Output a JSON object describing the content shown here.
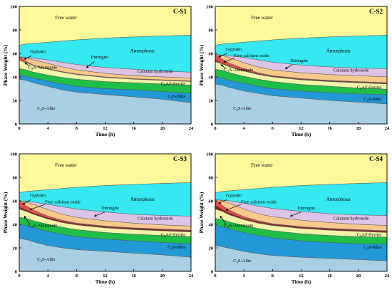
{
  "chart_data": [
    {
      "type": "area",
      "title": "C-S1",
      "xlabel": "Time (h)",
      "ylabel": "Phase Weight (%)",
      "xlim": [
        0,
        24
      ],
      "ylim": [
        0,
        100
      ],
      "xticks": [
        0,
        4,
        8,
        12,
        16,
        20,
        24
      ],
      "yticks": [
        0,
        20,
        40,
        60,
        80,
        100
      ],
      "x": [
        0,
        0.5,
        1,
        2,
        4,
        6,
        8,
        12,
        16,
        20,
        24
      ],
      "stacked_top_boundaries": [
        {
          "name": "C3S-Alite",
          "values": [
            38,
            37.5,
            37,
            35,
            32,
            29,
            27,
            25,
            23,
            21,
            18
          ]
        },
        {
          "name": "C2S-Blite",
          "values": [
            41.5,
            41,
            40.5,
            39,
            36.5,
            34,
            32,
            30,
            29,
            27.5,
            26
          ]
        },
        {
          "name": "C4AF-Ferrite",
          "values": [
            47,
            46.5,
            46,
            44,
            41.5,
            39.5,
            38,
            36,
            35,
            34,
            33
          ]
        },
        {
          "name": "C3A-Aluminate",
          "values": [
            54,
            53,
            52,
            49.5,
            46.5,
            44,
            42,
            39.5,
            38,
            37,
            36
          ]
        },
        {
          "name": "Gypsum",
          "values": [
            57,
            55.5,
            53,
            50,
            47,
            44.5,
            42.5,
            40,
            38.5,
            37.5,
            36.5
          ]
        },
        {
          "name": "Ettringite",
          "values": [
            57,
            56.5,
            56,
            54.5,
            51.5,
            48.5,
            46,
            43,
            41,
            40,
            39
          ]
        },
        {
          "name": "Calcium hydroxide",
          "values": [
            57,
            56.8,
            56.5,
            56,
            54.5,
            52.5,
            50.5,
            48,
            46.5,
            45,
            44
          ]
        },
        {
          "name": "Amorphous",
          "values": [
            67,
            67.5,
            68,
            68.5,
            69.5,
            70.5,
            71.5,
            73,
            74,
            74.8,
            75.5
          ]
        },
        {
          "name": "Free water",
          "values": [
            100,
            100,
            100,
            100,
            100,
            100,
            100,
            100,
            100,
            100,
            100
          ]
        }
      ],
      "labels": [
        {
          "key": "free_water",
          "text": "Free water"
        },
        {
          "key": "amorphous",
          "text": "Amorphous"
        },
        {
          "key": "gypsum",
          "text": "Gypsum"
        },
        {
          "key": "ettringite",
          "text": "Ettringite"
        },
        {
          "key": "ch",
          "text": "Calcium hydroxide"
        },
        {
          "key": "c3a",
          "main": "C",
          "sub": "3",
          "rest": "A-Aluminate"
        },
        {
          "key": "c4af",
          "main": "C",
          "sub": "4",
          "rest": "AF-Ferrite"
        },
        {
          "key": "c2s",
          "main": "C",
          "sub": "2",
          "rest": "S-Blite"
        },
        {
          "key": "c3s",
          "main": "C",
          "sub": "3",
          "rest": "S-Alite"
        }
      ]
    },
    {
      "type": "area",
      "title": "C-S2",
      "xlabel": "Time (h)",
      "ylabel": "Phase Weight (%)",
      "xlim": [
        0,
        24
      ],
      "ylim": [
        0,
        100
      ],
      "xticks": [
        0,
        4,
        8,
        12,
        16,
        20,
        24
      ],
      "yticks": [
        0,
        20,
        40,
        60,
        80,
        100
      ],
      "x": [
        0,
        0.5,
        1,
        2,
        4,
        6,
        8,
        12,
        16,
        20,
        24
      ],
      "stacked_top_boundaries": [
        {
          "name": "C3S-Alite",
          "values": [
            34,
            33.5,
            33,
            31,
            28,
            26,
            24,
            22,
            20,
            18.5,
            17
          ]
        },
        {
          "name": "C2S-Blite",
          "values": [
            40,
            39.5,
            39,
            37,
            34.5,
            32,
            30,
            28,
            26.5,
            25.5,
            25
          ]
        },
        {
          "name": "C4AF-Ferrite",
          "values": [
            46.5,
            46,
            45.5,
            43.5,
            40.5,
            38,
            36,
            33.5,
            32,
            30.5,
            29.5
          ]
        },
        {
          "name": "C3A-Aluminate",
          "values": [
            53,
            52,
            51,
            48.5,
            45,
            42,
            40,
            37.5,
            36,
            35,
            34
          ]
        },
        {
          "name": "Free calcium oxide",
          "values": [
            54,
            53,
            51.5,
            49,
            45.5,
            42.5,
            40.5,
            38,
            36.5,
            35.5,
            34.5
          ]
        },
        {
          "name": "Gypsum",
          "values": [
            59,
            57,
            55,
            51.5,
            47,
            43.5,
            41,
            38.5,
            37,
            36,
            35
          ]
        },
        {
          "name": "Ettringite",
          "values": [
            59,
            58.5,
            58,
            56.5,
            52,
            48.5,
            46,
            43.5,
            42,
            41,
            40
          ]
        },
        {
          "name": "Calcium hydroxide",
          "values": [
            59,
            58.8,
            58.5,
            58,
            56.5,
            54.5,
            52.5,
            50,
            48.5,
            47.5,
            47
          ]
        },
        {
          "name": "Amorphous",
          "values": [
            67,
            67.5,
            68,
            68.5,
            69.5,
            70.5,
            71.5,
            73,
            74,
            74.8,
            75.5
          ]
        },
        {
          "name": "Free water",
          "values": [
            100,
            100,
            100,
            100,
            100,
            100,
            100,
            100,
            100,
            100,
            100
          ]
        }
      ],
      "labels": [
        {
          "key": "free_water",
          "text": "Free water"
        },
        {
          "key": "amorphous",
          "text": "Amorphous"
        },
        {
          "key": "gypsum",
          "text": "Gypsum"
        },
        {
          "key": "fco",
          "text": "Free calcium oxide"
        },
        {
          "key": "ettringite",
          "text": "Ettringite"
        },
        {
          "key": "ch",
          "text": "Calcium hydroxide"
        },
        {
          "key": "c3a",
          "main": "C",
          "sub": "3",
          "rest": "A-Aluminate"
        },
        {
          "key": "c4af",
          "main": "C",
          "sub": "4",
          "rest": "AF-Ferrite"
        },
        {
          "key": "c2s",
          "main": "C",
          "sub": "2",
          "rest": "S-Blite"
        },
        {
          "key": "c3s",
          "main": "C",
          "sub": "3",
          "rest": "S-Alite"
        }
      ]
    },
    {
      "type": "area",
      "title": "C-S3",
      "xlabel": "Time (h)",
      "ylabel": "Phase Weight (%)",
      "xlim": [
        0,
        24
      ],
      "ylim": [
        0,
        100
      ],
      "xticks": [
        0,
        4,
        8,
        12,
        16,
        20,
        24
      ],
      "yticks": [
        0,
        20,
        40,
        60,
        80,
        100
      ],
      "x": [
        0,
        0.5,
        1,
        2,
        4,
        6,
        8,
        12,
        16,
        20,
        24
      ],
      "stacked_top_boundaries": [
        {
          "name": "C3S-Alite",
          "values": [
            28,
            27.5,
            27,
            25,
            22,
            20,
            18.5,
            17,
            15.5,
            14,
            12
          ]
        },
        {
          "name": "C2S-Blite",
          "values": [
            40,
            39.5,
            39,
            37,
            34,
            31.5,
            29.5,
            27.5,
            26,
            24.5,
            23.5
          ]
        },
        {
          "name": "C4AF-Ferrite",
          "values": [
            46,
            45.5,
            45,
            43,
            40,
            37.5,
            35.5,
            33,
            31.5,
            30.5,
            29.5
          ]
        },
        {
          "name": "C3A-Aluminate",
          "values": [
            53,
            52,
            51,
            48.5,
            44.5,
            41.5,
            39.5,
            37,
            35.5,
            34.5,
            33.5
          ]
        },
        {
          "name": "Free calcium oxide",
          "values": [
            54.5,
            53.5,
            52,
            49.5,
            45.5,
            42.5,
            40.5,
            38,
            36.5,
            35.5,
            34.5
          ]
        },
        {
          "name": "Gypsum",
          "values": [
            60,
            58,
            55.5,
            52,
            47,
            43.5,
            41,
            38.5,
            37,
            36,
            35
          ]
        },
        {
          "name": "Ettringite",
          "values": [
            60,
            59.5,
            59,
            57,
            52.5,
            48.5,
            46,
            43,
            41,
            39.5,
            38.5
          ]
        },
        {
          "name": "Calcium hydroxide",
          "values": [
            60,
            59.8,
            59.5,
            59,
            57,
            55,
            53,
            50.5,
            48.5,
            47.5,
            47
          ]
        },
        {
          "name": "Amorphous",
          "values": [
            67,
            67.5,
            68,
            68.5,
            69.5,
            70.5,
            71.5,
            73,
            74,
            74.8,
            75.5
          ]
        },
        {
          "name": "Free water",
          "values": [
            100,
            100,
            100,
            100,
            100,
            100,
            100,
            100,
            100,
            100,
            100
          ]
        }
      ],
      "labels": [
        {
          "key": "free_water",
          "text": "Free water"
        },
        {
          "key": "amorphous",
          "text": "Amorphous"
        },
        {
          "key": "gypsum",
          "text": "Gypsum"
        },
        {
          "key": "fco",
          "text": "Free calcium oxide"
        },
        {
          "key": "ettringite",
          "text": "Ettringite"
        },
        {
          "key": "ch",
          "text": "Calcium hydroxide"
        },
        {
          "key": "c3a",
          "main": "C",
          "sub": "3",
          "rest": "A-Aluminate"
        },
        {
          "key": "c4af",
          "main": "C",
          "sub": "4",
          "rest": "AF-Ferrite"
        },
        {
          "key": "c2s",
          "main": "C",
          "sub": "2",
          "rest": "S-Blite"
        },
        {
          "key": "c3s",
          "main": "C",
          "sub": "3",
          "rest": "S-Alite"
        }
      ]
    },
    {
      "type": "area",
      "title": "C-S4",
      "xlabel": "Time (h)",
      "ylabel": "Phase Weight (%)",
      "xlim": [
        0,
        24
      ],
      "ylim": [
        0,
        100
      ],
      "xticks": [
        0,
        4,
        8,
        12,
        16,
        20,
        24
      ],
      "yticks": [
        0,
        20,
        40,
        60,
        80,
        100
      ],
      "x": [
        0,
        0.5,
        1,
        2,
        4,
        6,
        8,
        12,
        16,
        20,
        24
      ],
      "stacked_top_boundaries": [
        {
          "name": "C3S-Alite",
          "values": [
            22,
            21.5,
            21,
            19.5,
            17,
            15,
            13.5,
            12,
            11,
            10,
            9
          ]
        },
        {
          "name": "C2S-Blite",
          "values": [
            39,
            38.5,
            38,
            36,
            33,
            30.5,
            28.5,
            26,
            24.5,
            23.5,
            23
          ]
        },
        {
          "name": "C4AF-Ferrite",
          "values": [
            45,
            44.5,
            44,
            42,
            39,
            36.5,
            34.5,
            32,
            30.5,
            29.5,
            29
          ]
        },
        {
          "name": "C3A-Aluminate",
          "values": [
            53,
            52,
            51,
            48,
            44,
            41,
            39,
            36.5,
            35,
            34,
            33
          ]
        },
        {
          "name": "Free calcium oxide",
          "values": [
            56,
            54.5,
            52.5,
            49.5,
            45,
            42,
            40,
            37.5,
            36,
            35,
            34
          ]
        },
        {
          "name": "Gypsum",
          "values": [
            61,
            58.5,
            56,
            52,
            46.5,
            43,
            40.5,
            38,
            36.5,
            35.5,
            34.5
          ]
        },
        {
          "name": "Ettringite",
          "values": [
            61,
            60.5,
            60,
            58,
            53,
            49,
            46.5,
            43.5,
            41.5,
            40,
            39
          ]
        },
        {
          "name": "Calcium hydroxide",
          "values": [
            61,
            60.8,
            60.5,
            60,
            58,
            55.5,
            53.5,
            51,
            49,
            48,
            47.5
          ]
        },
        {
          "name": "Amorphous",
          "values": [
            67,
            67.5,
            68,
            68.5,
            69.5,
            70.5,
            71.5,
            73,
            74,
            74.8,
            75.5
          ]
        },
        {
          "name": "Free water",
          "values": [
            100,
            100,
            100,
            100,
            100,
            100,
            100,
            100,
            100,
            100,
            100
          ]
        }
      ],
      "labels": [
        {
          "key": "free_water",
          "text": "Free water"
        },
        {
          "key": "amorphous",
          "text": "Amorphous"
        },
        {
          "key": "gypsum",
          "text": "Gypsum"
        },
        {
          "key": "fco",
          "text": "Free calcium oxide"
        },
        {
          "key": "ettringite",
          "text": "Ettringite"
        },
        {
          "key": "ch",
          "text": "Calcium hydroxide"
        },
        {
          "key": "c3a",
          "main": "C",
          "sub": "3",
          "rest": "A-Aluminate"
        },
        {
          "key": "c4af",
          "main": "C",
          "sub": "4",
          "rest": "AF-Ferrite"
        },
        {
          "key": "c2s",
          "main": "C",
          "sub": "2",
          "rest": "S-Blite"
        },
        {
          "key": "c3s",
          "main": "C",
          "sub": "3",
          "rest": "S-Alite"
        }
      ]
    }
  ],
  "colors": {
    "C3S-Alite": "#a9cfe3",
    "C2S-Blite": "#2398d6",
    "C4AF-Ferrite": "#1fbe47",
    "C3A-Aluminate": "#f2f5a9",
    "Free calcium oxide": "#8f1f1f",
    "Gypsum": "#e84a4a",
    "Ettringite": "#f7c98a",
    "Calcium hydroxide": "#dcc4e6",
    "Amorphous": "#36e8f0",
    "Free water": "#fdf89a"
  }
}
